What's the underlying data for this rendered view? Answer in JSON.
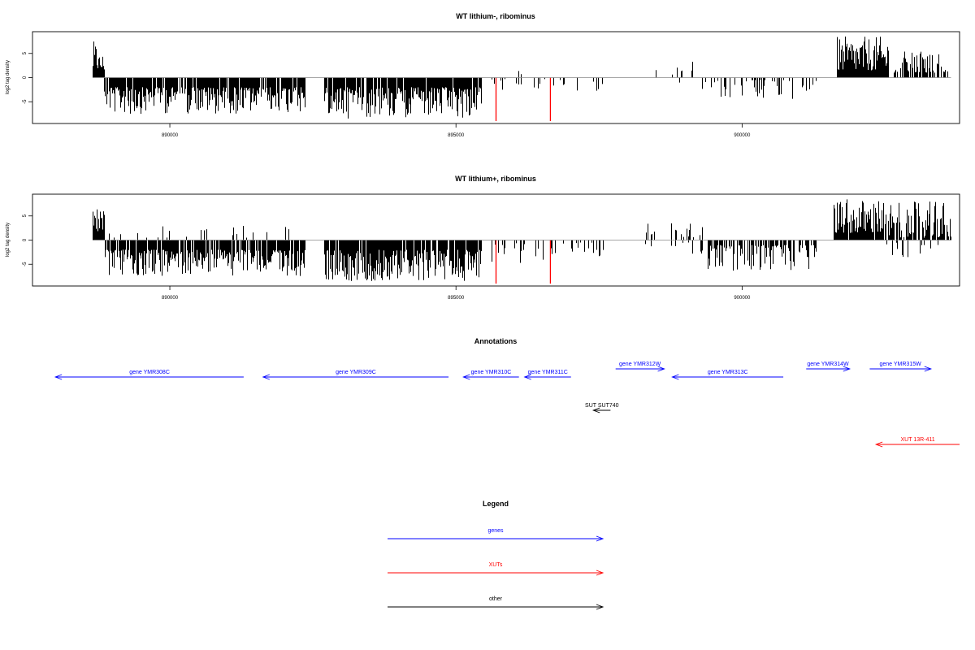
{
  "chart_data": [
    {
      "type": "bar",
      "title": "WT lithium-, ribominus",
      "ylabel": "log2 tag density",
      "xlim": [
        887600,
        903800
      ],
      "ylim": [
        -9.5,
        9.5
      ],
      "x_ticks": [
        890000,
        895000,
        900000
      ],
      "x_tick_labels": [
        "890000",
        "895000",
        "900000"
      ],
      "y_ticks": [
        -5,
        0,
        5
      ],
      "y_tick_labels": [
        "-5",
        "0",
        "5"
      ],
      "segments": [
        {
          "start": 888650,
          "end": 888750,
          "direction": "up",
          "min": 1.5,
          "max": 7.5,
          "density": 1.0
        },
        {
          "start": 888750,
          "end": 888850,
          "direction": "up",
          "min": 1.5,
          "max": 5.0,
          "density": 1.0
        },
        {
          "start": 888850,
          "end": 892350,
          "direction": "down",
          "min": 2.0,
          "max": 7.5,
          "density": 0.85
        },
        {
          "start": 892700,
          "end": 895450,
          "direction": "down",
          "min": 2.0,
          "max": 8.5,
          "density": 0.9
        },
        {
          "start": 895600,
          "end": 897600,
          "direction": "down",
          "min": 0.3,
          "max": 3.0,
          "density": 0.15
        },
        {
          "start": 895900,
          "end": 896300,
          "direction": "up",
          "min": 0.3,
          "max": 1.5,
          "density": 0.05
        },
        {
          "start": 898450,
          "end": 899150,
          "direction": "up",
          "min": 0.5,
          "max": 4.0,
          "density": 0.2
        },
        {
          "start": 898600,
          "end": 899100,
          "direction": "down",
          "min": 0.5,
          "max": 2.0,
          "density": 0.05
        },
        {
          "start": 899300,
          "end": 901300,
          "direction": "down",
          "min": 0.5,
          "max": 4.5,
          "density": 0.25
        },
        {
          "start": 901650,
          "end": 902550,
          "direction": "up",
          "min": 1.5,
          "max": 8.5,
          "density": 0.95
        },
        {
          "start": 902650,
          "end": 903650,
          "direction": "up",
          "min": 1.0,
          "max": 5.5,
          "density": 0.45
        }
      ],
      "red_marks": [
        {
          "x": 895700,
          "value": -9.0
        },
        {
          "x": 896650,
          "value": -9.0
        }
      ]
    },
    {
      "type": "bar",
      "title": "WT lithium+, ribominus",
      "ylabel": "log2 tag density",
      "xlim": [
        887600,
        903800
      ],
      "ylim": [
        -9.5,
        9.5
      ],
      "x_ticks": [
        890000,
        895000,
        900000
      ],
      "x_tick_labels": [
        "890000",
        "895000",
        "900000"
      ],
      "y_ticks": [
        -5,
        0,
        5
      ],
      "y_tick_labels": [
        "-5",
        "0",
        "5"
      ],
      "segments": [
        {
          "start": 888650,
          "end": 888850,
          "direction": "up",
          "min": 1.5,
          "max": 7.5,
          "density": 1.0
        },
        {
          "start": 888850,
          "end": 892350,
          "direction": "down",
          "min": 2.0,
          "max": 7.5,
          "density": 0.85
        },
        {
          "start": 888900,
          "end": 892200,
          "direction": "up",
          "min": 0.5,
          "max": 3.0,
          "density": 0.08
        },
        {
          "start": 892700,
          "end": 895450,
          "direction": "down",
          "min": 2.0,
          "max": 8.5,
          "density": 0.9
        },
        {
          "start": 895600,
          "end": 897600,
          "direction": "down",
          "min": 0.5,
          "max": 5.0,
          "density": 0.25
        },
        {
          "start": 898300,
          "end": 899300,
          "direction": "up",
          "min": 0.5,
          "max": 3.5,
          "density": 0.2
        },
        {
          "start": 898300,
          "end": 899300,
          "direction": "down",
          "min": 0.5,
          "max": 3.0,
          "density": 0.2
        },
        {
          "start": 899400,
          "end": 901300,
          "direction": "down",
          "min": 1.0,
          "max": 6.5,
          "density": 0.6
        },
        {
          "start": 901600,
          "end": 902450,
          "direction": "up",
          "min": 1.5,
          "max": 8.5,
          "density": 0.95
        },
        {
          "start": 902450,
          "end": 903650,
          "direction": "up",
          "min": 0.5,
          "max": 8.0,
          "density": 0.75
        },
        {
          "start": 902450,
          "end": 903650,
          "direction": "down",
          "min": 0.5,
          "max": 4.0,
          "density": 0.15
        }
      ],
      "red_marks": [
        {
          "x": 895700,
          "value": -9.0
        },
        {
          "x": 896650,
          "value": -9.0
        }
      ]
    },
    {
      "type": "annotation",
      "title": "Annotations",
      "features": [
        {
          "label": "gene YMR308C",
          "start": 888000,
          "end": 891290,
          "direction": "left",
          "category": "genes"
        },
        {
          "label": "gene YMR309C",
          "start": 891630,
          "end": 894870,
          "direction": "left",
          "category": "genes"
        },
        {
          "label": "gene YMR310C",
          "start": 895130,
          "end": 896100,
          "direction": "left",
          "category": "genes"
        },
        {
          "label": "gene YMR311C",
          "start": 896200,
          "end": 897010,
          "direction": "left",
          "category": "genes"
        },
        {
          "label": "gene YMR312W",
          "start": 897790,
          "end": 898640,
          "direction": "right",
          "category": "genes"
        },
        {
          "label": "gene YMR313C",
          "start": 898780,
          "end": 900720,
          "direction": "left",
          "category": "genes"
        },
        {
          "label": "gene YMR314W",
          "start": 901120,
          "end": 901880,
          "direction": "right",
          "category": "genes"
        },
        {
          "label": "gene YMR315W",
          "start": 902230,
          "end": 903300,
          "direction": "right",
          "category": "genes"
        },
        {
          "label": "SUT SUT740",
          "start": 897400,
          "end": 897700,
          "direction": "left",
          "category": "other"
        },
        {
          "label": "XUT 13R-411",
          "start": 902340,
          "end": 903800,
          "direction": "left",
          "category": "XUTs"
        }
      ]
    },
    {
      "type": "legend",
      "title": "Legend",
      "entries": [
        {
          "label": "genes",
          "color": "#0000ff"
        },
        {
          "label": "XUTs",
          "color": "#ff0000"
        },
        {
          "label": "other",
          "color": "#000000"
        }
      ]
    }
  ]
}
